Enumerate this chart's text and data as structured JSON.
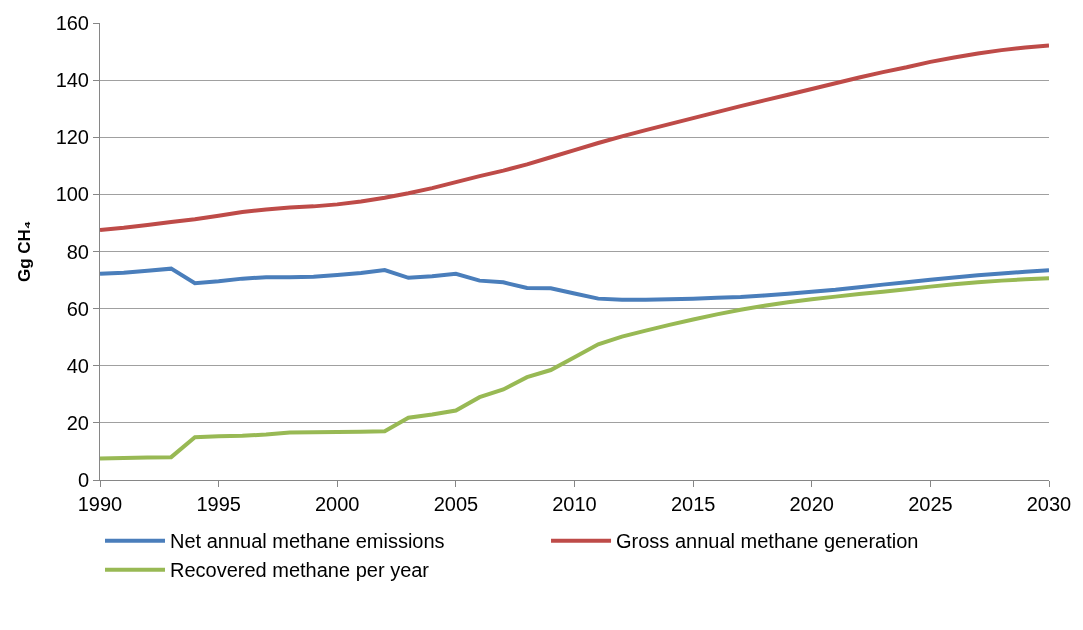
{
  "chart_data": {
    "type": "line",
    "ylabel": "Gg CH₄",
    "x": [
      1990,
      1991,
      1992,
      1993,
      1994,
      1995,
      1996,
      1997,
      1998,
      1999,
      2000,
      2001,
      2002,
      2003,
      2004,
      2005,
      2006,
      2007,
      2008,
      2009,
      2010,
      2011,
      2012,
      2013,
      2014,
      2015,
      2016,
      2017,
      2018,
      2019,
      2020,
      2021,
      2022,
      2023,
      2024,
      2025,
      2026,
      2027,
      2028,
      2029,
      2030
    ],
    "series": [
      {
        "name": "Net annual methane emissions",
        "color": "#4a7ebb",
        "values": [
          72.2,
          72.6,
          73.3,
          74,
          68.9,
          69.6,
          70.5,
          71,
          71,
          71.2,
          71.8,
          72.5,
          73.5,
          70.8,
          71.3,
          72.2,
          69.8,
          69.2,
          67.2,
          67.1,
          65.3,
          63.5,
          63.1,
          63.1,
          63.3,
          63.5,
          63.8,
          64.1,
          64.6,
          65.2,
          65.9,
          66.6,
          67.5,
          68.4,
          69.2,
          70.1,
          70.9,
          71.7,
          72.3,
          72.9,
          73.4
        ]
      },
      {
        "name": "Gross annual methane generation",
        "color": "#be4b48",
        "values": [
          87.5,
          88.3,
          89.3,
          90.3,
          91.3,
          92.5,
          93.8,
          94.7,
          95.4,
          95.8,
          96.5,
          97.5,
          98.8,
          100.4,
          102.2,
          104.3,
          106.4,
          108.3,
          110.5,
          113,
          115.5,
          118,
          120.3,
          122.5,
          124.6,
          126.7,
          128.8,
          130.9,
          132.9,
          134.9,
          136.9,
          138.9,
          140.9,
          142.8,
          144.5,
          146.4,
          147.9,
          149.3,
          150.5,
          151.4,
          152.1
        ]
      },
      {
        "name": "Recovered methane per year",
        "color": "#98b954",
        "values": [
          7.5,
          7.7,
          7.9,
          8,
          15,
          15.3,
          15.5,
          15.9,
          16.6,
          16.7,
          16.8,
          16.9,
          17.1,
          21.8,
          22.9,
          24.3,
          29,
          31.7,
          36,
          38.5,
          43,
          47.5,
          50.2,
          52.3,
          54.3,
          56.2,
          58,
          59.6,
          61,
          62.2,
          63.3,
          64.2,
          65.1,
          65.9,
          66.8,
          67.7,
          68.5,
          69.2,
          69.8,
          70.3,
          70.6
        ]
      }
    ],
    "xlim": [
      1990,
      2030
    ],
    "xticks": [
      1990,
      1995,
      2000,
      2005,
      2010,
      2015,
      2020,
      2025,
      2030
    ],
    "ylim": [
      0,
      160
    ],
    "yticks": [
      0,
      20,
      40,
      60,
      80,
      100,
      120,
      140,
      160
    ],
    "grid": "y",
    "legend": "bottom",
    "marker": "none",
    "line_style": "solid"
  }
}
